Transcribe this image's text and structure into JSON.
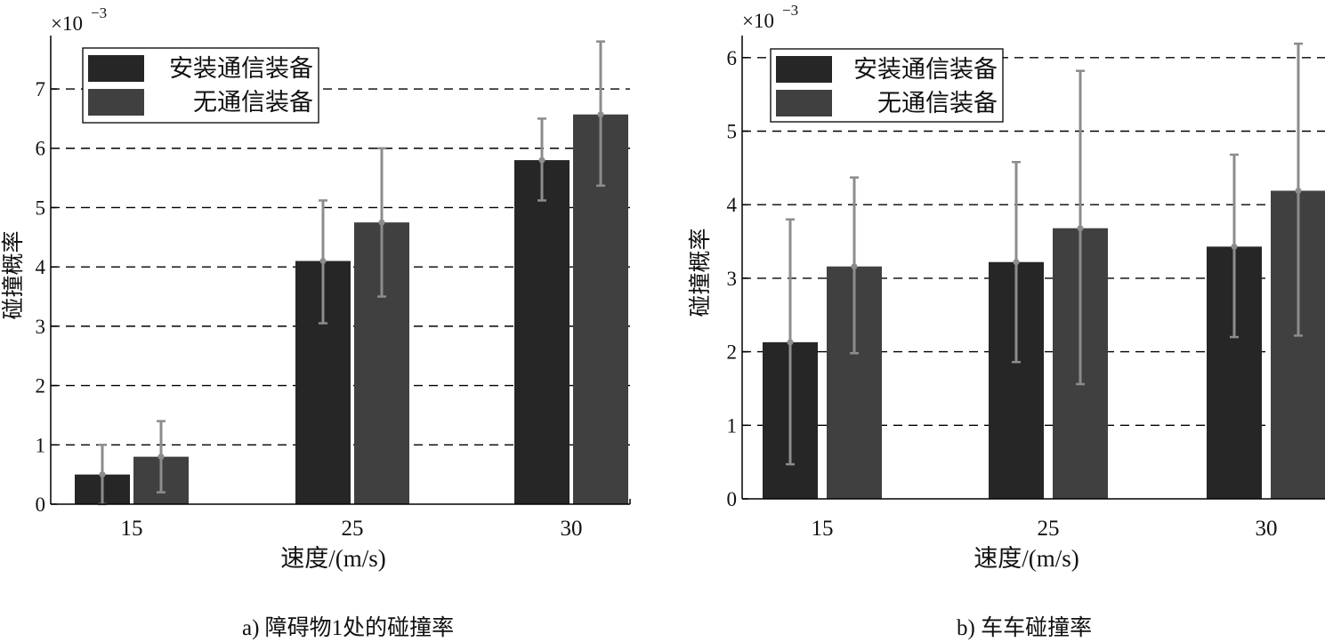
{
  "chart_data": [
    {
      "type": "bar",
      "categories": [
        "15",
        "25",
        "30"
      ],
      "series": [
        {
          "name": "安装通信装备",
          "values": [
            0.5,
            4.1,
            5.8
          ],
          "err_low": [
            0.0,
            3.05,
            5.12
          ],
          "err_high": [
            1.0,
            5.12,
            6.5
          ]
        },
        {
          "name": "无通信装备",
          "values": [
            0.8,
            4.75,
            6.57
          ],
          "err_low": [
            0.2,
            3.5,
            5.37
          ],
          "err_high": [
            1.4,
            6.0,
            7.8
          ]
        }
      ],
      "xlabel": "速度/(m/s)",
      "ylabel": "碰撞概率",
      "ylim": [
        0,
        7.9
      ],
      "yticks": [
        0,
        1,
        2,
        3,
        4,
        5,
        6,
        7
      ],
      "scale_label": "×10",
      "scale_exp": "−3",
      "grid": "dashed-horizontal",
      "legend": "top-left",
      "caption": "a) 障碍物1处的碰撞率"
    },
    {
      "type": "bar",
      "categories": [
        "15",
        "25",
        "30"
      ],
      "series": [
        {
          "name": "安装通信装备",
          "values": [
            2.13,
            3.22,
            3.43
          ],
          "err_low": [
            0.47,
            1.86,
            2.2
          ],
          "err_high": [
            3.8,
            4.58,
            4.68
          ]
        },
        {
          "name": "无通信装备",
          "values": [
            3.16,
            3.68,
            4.19
          ],
          "err_low": [
            1.98,
            1.56,
            2.22
          ],
          "err_high": [
            4.37,
            5.82,
            6.19
          ]
        }
      ],
      "xlabel": "速度/(m/s)",
      "ylabel": "碰撞概率",
      "ylim": [
        0,
        6.3
      ],
      "yticks": [
        0,
        1,
        2,
        3,
        4,
        5,
        6
      ],
      "scale_label": "×10",
      "scale_exp": "−3",
      "grid": "dashed-horizontal",
      "legend": "top-left",
      "caption": "b) 车车碰撞率"
    }
  ],
  "colors": {
    "series_1": "262626",
    "series_2": "404040",
    "error_bar": "8c8c8c",
    "axis": "000000",
    "grid": "000000"
  }
}
